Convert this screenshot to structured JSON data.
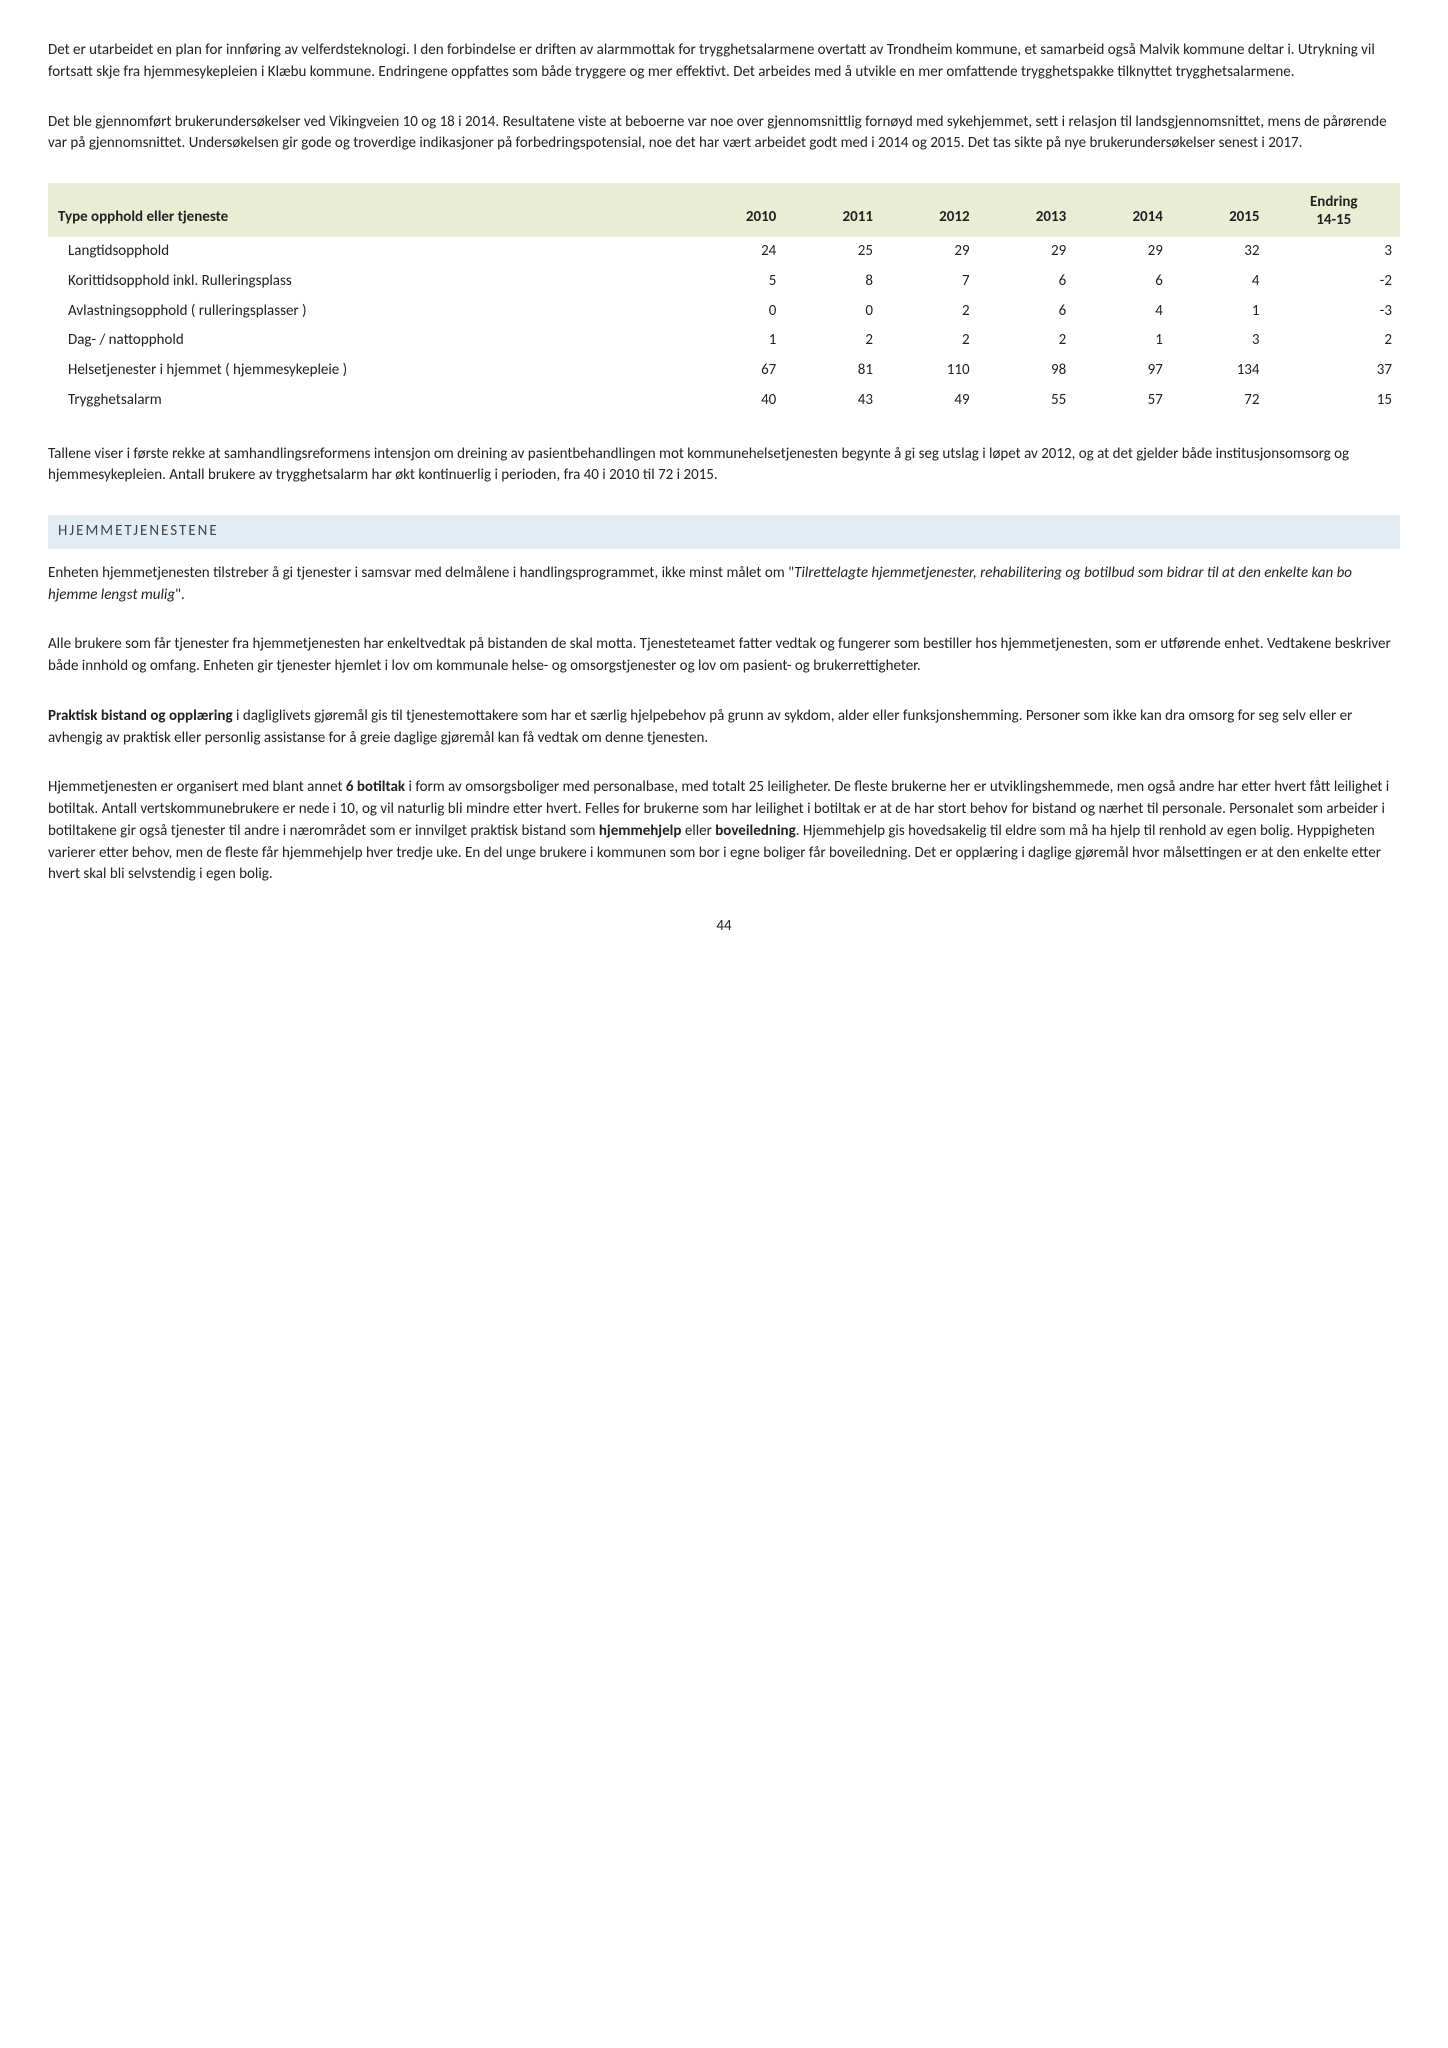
{
  "paragraphs": {
    "p1": "Det er utarbeidet en plan for innføring av velferdsteknologi. I den forbindelse er driften av alarmmottak for trygghetsalarmene overtatt av Trondheim kommune, et samarbeid også Malvik kommune deltar i. Utrykning vil fortsatt skje fra hjemmesykepleien i Klæbu kommune. Endringene oppfattes som både tryggere og mer effektivt. Det arbeides med å utvikle en mer omfattende trygghetspakke tilknyttet trygghetsalarmene.",
    "p2": "Det ble gjennomført brukerundersøkelser ved Vikingveien 10 og 18 i 2014. Resultatene viste at beboerne var noe over gjennomsnittlig fornøyd med sykehjemmet, sett i relasjon til landsgjennomsnittet, mens de pårørende var på gjennomsnittet. Undersøkelsen gir gode og troverdige indikasjoner på forbedringspotensial, noe det har vært arbeidet godt med i 2014 og 2015. Det tas sikte på nye brukerundersøkelser senest i 2017.",
    "p3": "Tallene viser i første rekke at samhandlingsreformens intensjon om dreining av pasientbehandlingen mot kommunehelsetjenesten begynte å gi seg utslag i løpet av 2012, og at det gjelder både institusjonsomsorg og hjemmesykepleien. Antall brukere av trygghetsalarm har økt kontinuerlig i perioden, fra 40 i 2010 til 72 i 2015.",
    "p4_a": "Enheten hjemmetjenesten tilstreber å gi tjenester i samsvar med delmålene i handlingsprogrammet, ikke minst målet om \"",
    "p4_b": "Tilrettelagte hjemmetjenester, rehabilitering og botilbud som bidrar til at den enkelte kan bo hjemme lengst mulig",
    "p4_c": "\".",
    "p5": "Alle brukere som får tjenester fra hjemmetjenesten har enkeltvedtak på bistanden de skal motta. Tjenesteteamet fatter vedtak og fungerer som bestiller hos hjemmetjenesten, som er utførende enhet. Vedtakene beskriver både innhold og omfang. Enheten gir tjenester hjemlet i lov om kommunale helse- og omsorgstjenester og lov om pasient- og brukerrettigheter.",
    "p6_bold": "Praktisk bistand og opplæring",
    "p6_rest": " i dagliglivets gjøremål gis til tjenestemottakere som har et særlig hjelpebehov på grunn av sykdom, alder eller funksjonshemming. Personer som ikke kan dra omsorg for seg selv eller er avhengig av praktisk eller personlig assistanse for å greie daglige gjøremål kan få vedtak om denne tjenesten.",
    "p7_a": "Hjemmetjenesten er organisert med blant annet ",
    "p7_bold1": "6 botiltak",
    "p7_b": " i form av omsorgsboliger med personalbase, med totalt 25 leiligheter. De fleste brukerne her er utviklingshemmede, men også andre har etter hvert fått leilighet i botiltak. Antall vertskommunebrukere er nede i 10, og vil naturlig bli mindre etter hvert. Felles for brukerne som har leilighet i botiltak er at de har stort behov for bistand og nærhet til personale. Personalet som arbeider i botiltakene gir også tjenester til andre i nærområdet som er innvilget praktisk bistand som ",
    "p7_bold2": "hjemmehjelp",
    "p7_c": " eller ",
    "p7_bold3": "boveiledning",
    "p7_d": ". Hjemmehjelp gis hovedsakelig til eldre som må ha hjelp til renhold av egen bolig. Hyppigheten varierer etter behov, men de fleste får hjemmehjelp hver tredje uke. En del unge brukere i kommunen som bor i egne boliger får boveiledning. Det er opplæring i daglige gjøremål hvor målsettingen er at den enkelte etter hvert skal bli selvstendig i egen bolig."
  },
  "table": {
    "header_bg": "#e9edd4",
    "columns": [
      "Type opphold eller tjeneste",
      "2010",
      "2011",
      "2012",
      "2013",
      "2014",
      "2015"
    ],
    "endring_line1": "Endring",
    "endring_line2": "14-15",
    "rows": [
      {
        "label": "Langtidsopphold",
        "v": [
          "24",
          "25",
          "29",
          "29",
          "29",
          "32",
          "3"
        ]
      },
      {
        "label": "Korittidsopphold inkl. Rulleringsplass",
        "v": [
          "5",
          "8",
          "7",
          "6",
          "6",
          "4",
          "-2"
        ]
      },
      {
        "label": "Avlastningsopphold ( rulleringsplasser )",
        "v": [
          "0",
          "0",
          "2",
          "6",
          "4",
          "1",
          "-3"
        ]
      },
      {
        "label": "Dag- / nattopphold",
        "v": [
          "1",
          "2",
          "2",
          "2",
          "1",
          "3",
          "2"
        ]
      },
      {
        "label": "Helsetjenester i hjemmet ( hjemmesykepleie )",
        "v": [
          "67",
          "81",
          "110",
          "98",
          "97",
          "134",
          "37"
        ]
      },
      {
        "label": "Trygghetsalarm",
        "v": [
          "40",
          "43",
          "49",
          "55",
          "57",
          "72",
          "15"
        ]
      }
    ]
  },
  "section_heading": "HJEMMETJENESTENE",
  "page_number": "44"
}
